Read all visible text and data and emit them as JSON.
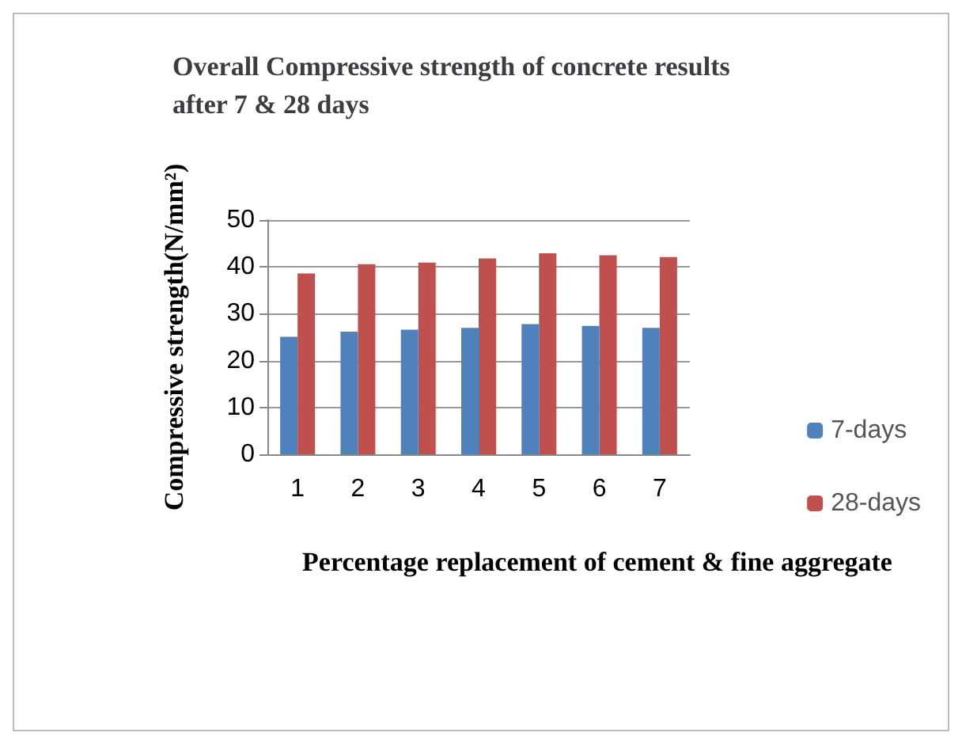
{
  "chart_data": {
    "type": "bar",
    "title": "Overall Compressive strength of concrete results after 7 & 28 days",
    "xlabel": "Percentage replacement of cement & fine aggregate",
    "ylabel": "Compressive strength(N/mm²)",
    "categories": [
      "1",
      "2",
      "3",
      "4",
      "5",
      "6",
      "7"
    ],
    "series": [
      {
        "name": "7-days",
        "color": "#4f81bd",
        "values": [
          25.1,
          26.2,
          26.6,
          27.0,
          27.8,
          27.4,
          27.0
        ]
      },
      {
        "name": "28-days",
        "color": "#c0504d",
        "values": [
          38.6,
          40.6,
          40.9,
          41.8,
          42.9,
          42.5,
          42.1
        ]
      }
    ],
    "ylim": [
      0,
      50
    ],
    "yticks": [
      0,
      10,
      20,
      30,
      40,
      50
    ],
    "grid": "y",
    "legend": "right"
  }
}
